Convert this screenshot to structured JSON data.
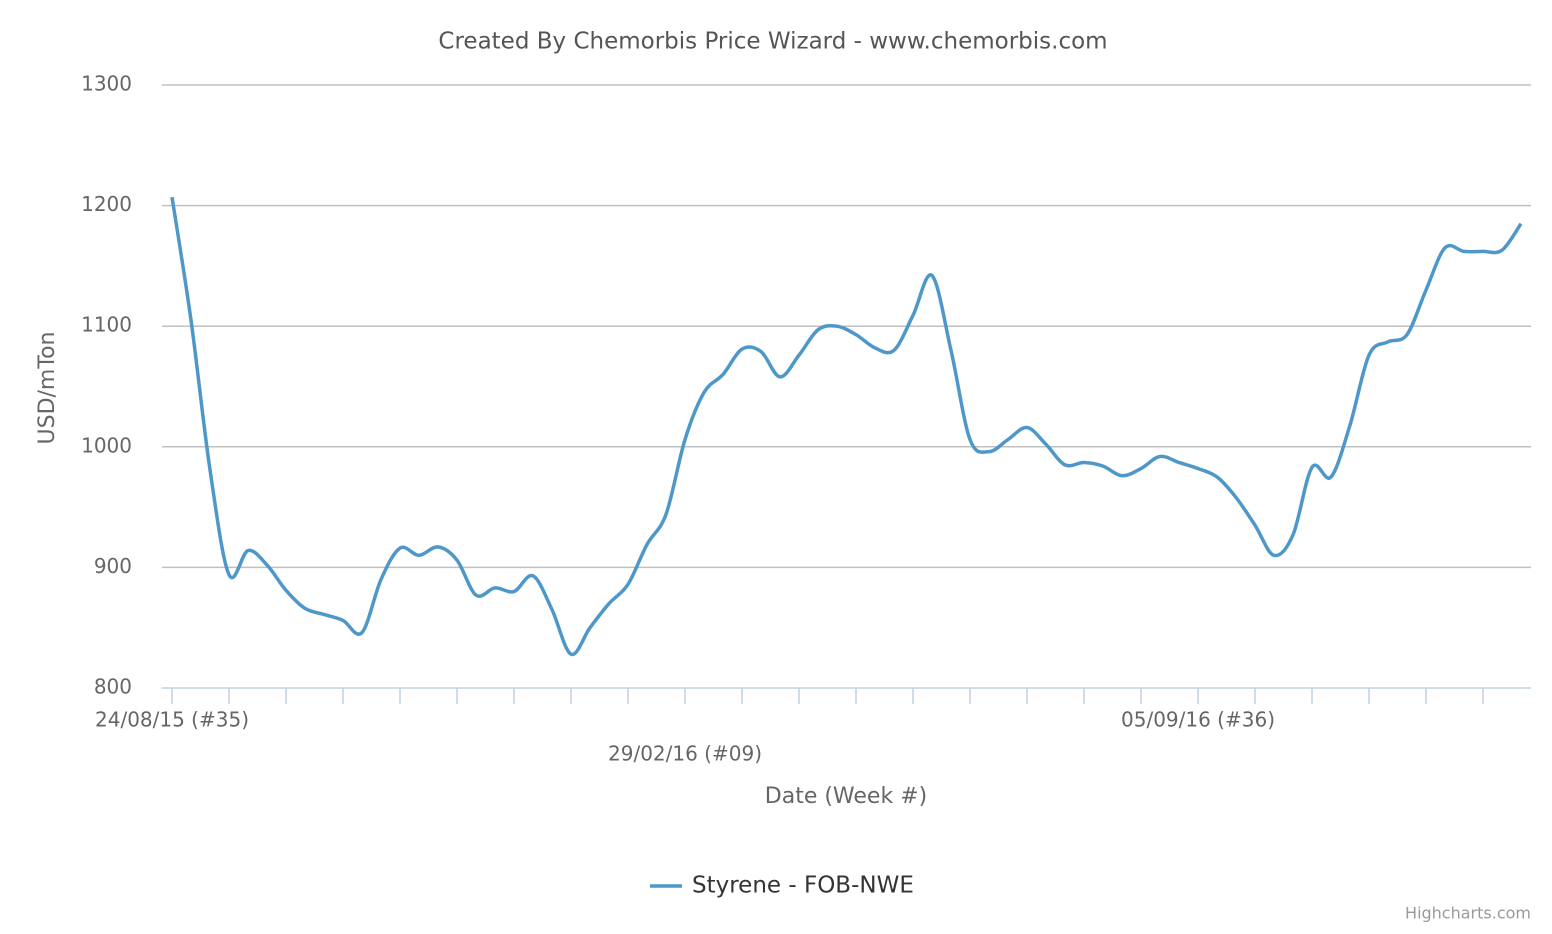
{
  "chart_data": {
    "type": "line",
    "title": "Created By Chemorbis Price Wizard - www.chemorbis.com",
    "y_axis_label": "USD/mTon",
    "x_axis_label": "Date (Week #)",
    "credit": "Highcharts.com",
    "categories": [
      "24/08/15 (#35)",
      null,
      null,
      null,
      null,
      null,
      null,
      null,
      null,
      null,
      null,
      null,
      null,
      null,
      null,
      null,
      null,
      null,
      null,
      null,
      null,
      null,
      null,
      null,
      null,
      null,
      null,
      "29/02/16 (#09)",
      null,
      null,
      null,
      null,
      null,
      null,
      null,
      null,
      null,
      null,
      null,
      null,
      null,
      null,
      null,
      null,
      null,
      null,
      null,
      null,
      null,
      null,
      null,
      null,
      null,
      null,
      "05/09/16 (#36)",
      null,
      null,
      null,
      null,
      null,
      null,
      null,
      null,
      null,
      null,
      null,
      null,
      null,
      null,
      null,
      null,
      null
    ],
    "series": [
      {
        "name": "Styrene - FOB-NWE",
        "color": "#4e98c9",
        "values": [
          1207,
          1105,
          981,
          894,
          914,
          902,
          881,
          866,
          861,
          856,
          846,
          890,
          916,
          910,
          917,
          906,
          877,
          883,
          880,
          893,
          865,
          828,
          850,
          870,
          886,
          919,
          944,
          1006,
          1045,
          1060,
          1081,
          1079,
          1058,
          1076,
          1097,
          1100,
          1093,
          1082,
          1080,
          1109,
          1142,
          1080,
          1006,
          996,
          1006,
          1016,
          1002,
          985,
          987,
          984,
          976,
          982,
          992,
          987,
          982,
          975,
          958,
          935,
          910,
          927,
          983,
          975,
          1018,
          1076,
          1087,
          1093,
          1130,
          1165,
          1162,
          1162,
          1163,
          1185
        ]
      }
    ],
    "ylim": [
      800,
      1300
    ],
    "yticks": [
      800,
      900,
      1000,
      1100,
      1200,
      1300
    ],
    "grid": true
  }
}
